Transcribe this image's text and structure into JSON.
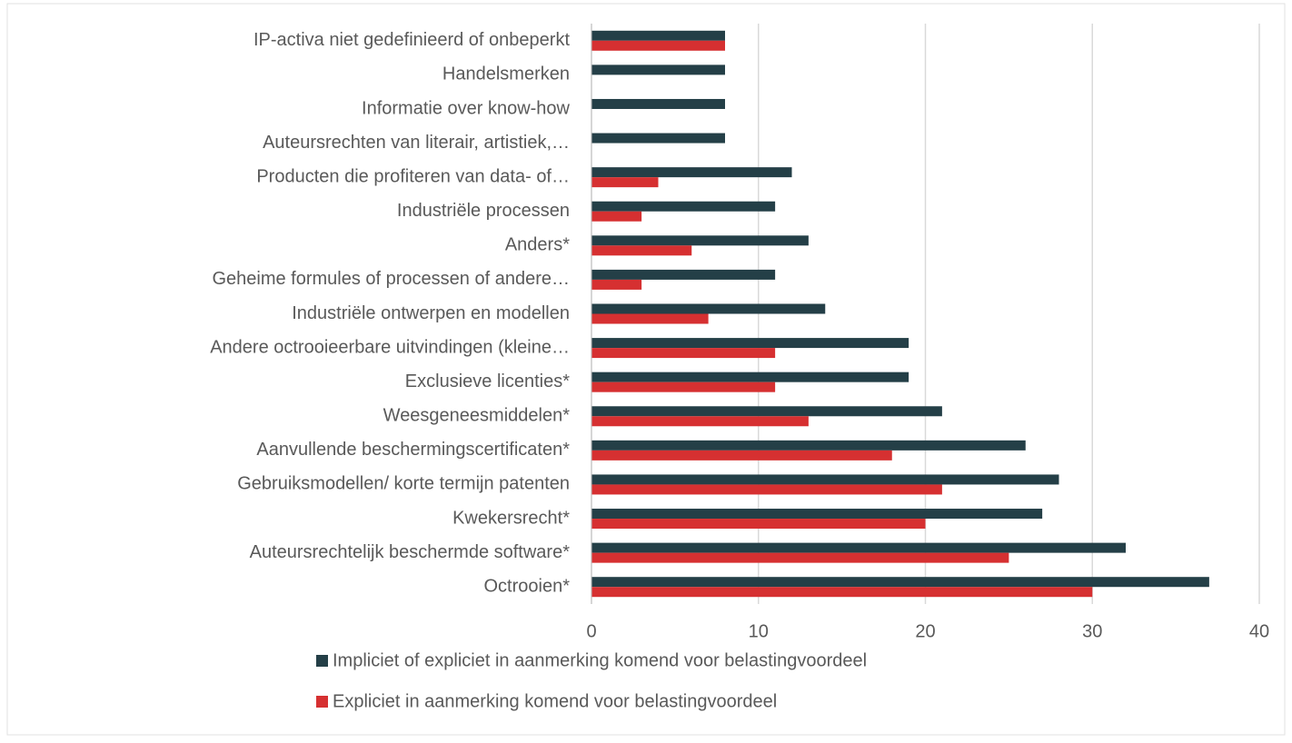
{
  "chart_data": {
    "type": "hbar",
    "categories": [
      "IP-activa niet gedefinieerd of onbeperkt",
      "Handelsmerken",
      "Informatie over know-how",
      "Auteursrechten van literair, artistiek,…",
      "Producten die profiteren van data- of…",
      "Industriële processen",
      "Anders*",
      "Geheime formules of processen of andere…",
      "Industriële ontwerpen en modellen",
      "Andere octrooieerbare uitvindingen (kleine…",
      "Exclusieve licenties*",
      "Weesgeneesmiddelen*",
      "Aanvullende beschermingscertificaten*",
      "Gebruiksmodellen/ korte termijn patenten",
      "Kwekersrecht*",
      "Auteursrechtelijk beschermde software*",
      "Octrooien*"
    ],
    "series": [
      {
        "name": "Impliciet of expliciet in aanmerking komend voor belastingvoordeel",
        "color": "#243f47",
        "values": [
          8,
          8,
          8,
          8,
          12,
          11,
          13,
          11,
          14,
          19,
          19,
          21,
          26,
          28,
          27,
          32,
          37
        ]
      },
      {
        "name": "Expliciet in aanmerking komend voor belastingvoordeel",
        "color": "#d63031",
        "values": [
          8,
          0,
          0,
          0,
          4,
          3,
          6,
          3,
          7,
          11,
          11,
          13,
          18,
          21,
          20,
          25,
          30
        ]
      }
    ],
    "xlim": [
      0,
      40
    ],
    "xticks": [
      0,
      10,
      20,
      30,
      40
    ],
    "grid": true,
    "legend": "bottom"
  }
}
